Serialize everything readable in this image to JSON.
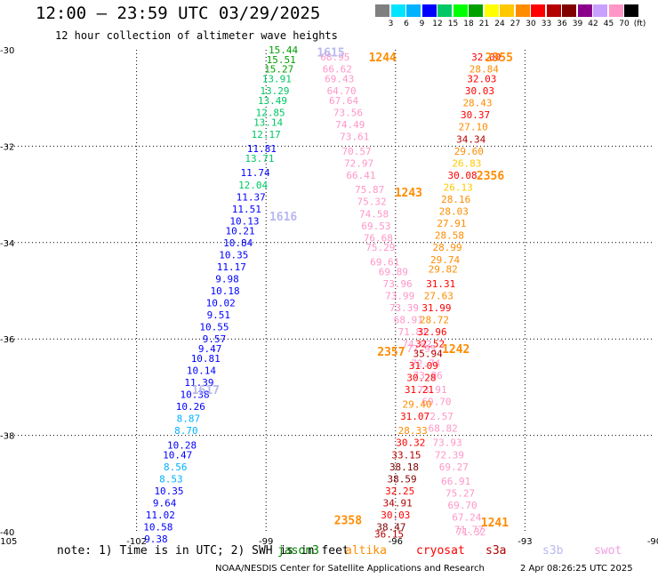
{
  "header": {
    "title": "12:00 – 23:59 UTC 03/29/2025",
    "subtitle": "12 hour collection of altimeter wave heights"
  },
  "color_scale": {
    "labels": [
      "3",
      "6",
      "9",
      "12",
      "15",
      "18",
      "21",
      "24",
      "27",
      "30",
      "33",
      "36",
      "39",
      "42",
      "45",
      "70",
      "(ft)"
    ],
    "colors": [
      "#808080",
      "#00e5ff",
      "#00b2ff",
      "#0000ff",
      "#00c864",
      "#00ff00",
      "#00a000",
      "#ffff00",
      "#ffc800",
      "#ff8c00",
      "#ff0000",
      "#b40000",
      "#800000",
      "#8b008b",
      "#c8a0ff",
      "#ff96c8",
      "#000000"
    ]
  },
  "note": {
    "text": "note: 1) Time is in UTC; 2) SWH is in feet",
    "satellites": [
      {
        "name": "jason3",
        "color": "#008000"
      },
      {
        "name": "altika",
        "color": "#ff8c00"
      },
      {
        "name": "cryosat",
        "color": "#ff0000"
      },
      {
        "name": "s3a",
        "color": "#b00000"
      },
      {
        "name": "s3b",
        "color": "#b8b8f0"
      },
      {
        "name": "swot",
        "color": "#f0a0e0"
      }
    ]
  },
  "footer": {
    "credit": "NOAA/NESDIS Center for Satellite Applications and Research",
    "stamp": "2 Apr 08:26:25 UTC 2025"
  },
  "chart_data": {
    "type": "scatter",
    "title": "12:00 – 23:59 UTC 03/29/2025",
    "subtitle": "12 hour collection of altimeter wave heights",
    "xlim": [
      -105,
      -90
    ],
    "ylim": [
      -40,
      -30
    ],
    "x_ticks": [
      "-105",
      "-102",
      "-99",
      "-96",
      "-93",
      "-90"
    ],
    "y_ticks": [
      "-30",
      "-32",
      "-34",
      "-36",
      "-38",
      "-40"
    ],
    "grid": true,
    "pass_labels": [
      {
        "text": "1615",
        "x": -97.5,
        "y": -30.05,
        "color": "#b8b8f0"
      },
      {
        "text": "1244",
        "x": -96.3,
        "y": -30.15,
        "color": "#ff8c00"
      },
      {
        "text": "2355",
        "x": -93.6,
        "y": -30.15,
        "color": "#ff8c00"
      },
      {
        "text": "2356",
        "x": -93.8,
        "y": -32.6,
        "color": "#ff8c00"
      },
      {
        "text": "1243",
        "x": -95.7,
        "y": -32.95,
        "color": "#ff8c00"
      },
      {
        "text": "1616",
        "x": -98.6,
        "y": -33.45,
        "color": "#b8b8f0"
      },
      {
        "text": "2357",
        "x": -96.1,
        "y": -36.25,
        "color": "#ff8c00"
      },
      {
        "text": "1242",
        "x": -94.6,
        "y": -36.2,
        "color": "#ff8c00"
      },
      {
        "text": "1617",
        "x": -100.4,
        "y": -37.05,
        "color": "#b8b8f0"
      },
      {
        "text": "2358",
        "x": -97.1,
        "y": -39.75,
        "color": "#ff8c00"
      },
      {
        "text": "1241",
        "x": -93.7,
        "y": -39.8,
        "color": "#ff8c00"
      }
    ],
    "series": [
      {
        "name": "jason3",
        "points": [
          {
            "x": -98.6,
            "y": -30.0,
            "v": "15.44",
            "c": "#00a000"
          },
          {
            "x": -98.65,
            "y": -30.2,
            "v": "15.51",
            "c": "#00a000"
          },
          {
            "x": -98.7,
            "y": -30.4,
            "v": "15.27",
            "c": "#00a000"
          },
          {
            "x": -98.75,
            "y": -30.6,
            "v": "13.91",
            "c": "#00c864"
          },
          {
            "x": -98.8,
            "y": -30.85,
            "v": "13.29",
            "c": "#00c864"
          },
          {
            "x": -98.85,
            "y": -31.05,
            "v": "13.49",
            "c": "#00c864"
          },
          {
            "x": -98.9,
            "y": -31.3,
            "v": "12.85",
            "c": "#00c864"
          },
          {
            "x": -98.95,
            "y": -31.5,
            "v": "13.14",
            "c": "#00c864"
          },
          {
            "x": -99.0,
            "y": -31.75,
            "v": "12.17",
            "c": "#00c864"
          },
          {
            "x": -99.1,
            "y": -32.05,
            "v": "11.81",
            "c": "#0000ff"
          },
          {
            "x": -99.15,
            "y": -32.25,
            "v": "13.71",
            "c": "#00c864"
          },
          {
            "x": -99.25,
            "y": -32.55,
            "v": "11.74",
            "c": "#0000ff"
          },
          {
            "x": -99.3,
            "y": -32.8,
            "v": "12.04",
            "c": "#00c864"
          },
          {
            "x": -99.35,
            "y": -33.05,
            "v": "11.37",
            "c": "#0000ff"
          },
          {
            "x": -99.45,
            "y": -33.3,
            "v": "11.51",
            "c": "#0000ff"
          },
          {
            "x": -99.5,
            "y": -33.55,
            "v": "10.13",
            "c": "#0000ff"
          },
          {
            "x": -99.6,
            "y": -33.75,
            "v": "10.21",
            "c": "#0000ff"
          },
          {
            "x": -99.65,
            "y": -34.0,
            "v": "10.84",
            "c": "#0000ff"
          },
          {
            "x": -99.75,
            "y": -34.25,
            "v": "10.35",
            "c": "#0000ff"
          },
          {
            "x": -99.8,
            "y": -34.5,
            "v": "11.17",
            "c": "#0000ff"
          },
          {
            "x": -99.9,
            "y": -34.75,
            "v": "9.98",
            "c": "#0000ff"
          },
          {
            "x": -99.95,
            "y": -35.0,
            "v": "10.18",
            "c": "#0000ff"
          },
          {
            "x": -100.05,
            "y": -35.25,
            "v": "10.02",
            "c": "#0000ff"
          },
          {
            "x": -100.1,
            "y": -35.5,
            "v": "9.51",
            "c": "#0000ff"
          },
          {
            "x": -100.2,
            "y": -35.75,
            "v": "10.55",
            "c": "#0000ff"
          },
          {
            "x": -100.2,
            "y": -36.0,
            "v": "9.57",
            "c": "#0000ff"
          },
          {
            "x": -100.3,
            "y": -36.2,
            "v": "9.47",
            "c": "#0000ff"
          },
          {
            "x": -100.4,
            "y": -36.4,
            "v": "10.81",
            "c": "#0000ff"
          },
          {
            "x": -100.5,
            "y": -36.65,
            "v": "10.14",
            "c": "#0000ff"
          },
          {
            "x": -100.55,
            "y": -36.9,
            "v": "11.39",
            "c": "#0000ff"
          },
          {
            "x": -100.65,
            "y": -37.15,
            "v": "10.38",
            "c": "#0000ff"
          },
          {
            "x": -100.75,
            "y": -37.4,
            "v": "10.26",
            "c": "#0000ff"
          },
          {
            "x": -100.8,
            "y": -37.65,
            "v": "8.87",
            "c": "#00b2ff"
          },
          {
            "x": -100.85,
            "y": -37.9,
            "v": "8.70",
            "c": "#00b2ff"
          },
          {
            "x": -100.95,
            "y": -38.2,
            "v": "10.28",
            "c": "#0000ff"
          },
          {
            "x": -101.05,
            "y": -38.4,
            "v": "10.47",
            "c": "#0000ff"
          },
          {
            "x": -101.1,
            "y": -38.65,
            "v": "8.56",
            "c": "#00b2ff"
          },
          {
            "x": -101.2,
            "y": -38.9,
            "v": "8.53",
            "c": "#00b2ff"
          },
          {
            "x": -101.25,
            "y": -39.15,
            "v": "10.35",
            "c": "#0000ff"
          },
          {
            "x": -101.35,
            "y": -39.4,
            "v": "9.64",
            "c": "#0000ff"
          },
          {
            "x": -101.45,
            "y": -39.65,
            "v": "11.02",
            "c": "#0000ff"
          },
          {
            "x": -101.5,
            "y": -39.9,
            "v": "10.58",
            "c": "#0000ff"
          },
          {
            "x": -101.55,
            "y": -40.15,
            "v": "9.38",
            "c": "#0000ff"
          }
        ]
      },
      {
        "name": "swot",
        "points": [
          {
            "x": -97.4,
            "y": -30.15,
            "v": "68.95",
            "c": "#ff96c8"
          },
          {
            "x": -97.35,
            "y": -30.4,
            "v": "66.62",
            "c": "#ff96c8"
          },
          {
            "x": -97.3,
            "y": -30.6,
            "v": "69.43",
            "c": "#ff96c8"
          },
          {
            "x": -97.25,
            "y": -30.85,
            "v": "64.70",
            "c": "#ff96c8"
          },
          {
            "x": -97.2,
            "y": -31.05,
            "v": "67.64",
            "c": "#ff96c8"
          },
          {
            "x": -97.1,
            "y": -31.3,
            "v": "73.56",
            "c": "#ff96c8"
          },
          {
            "x": -97.05,
            "y": -31.55,
            "v": "74.49",
            "c": "#ff96c8"
          },
          {
            "x": -96.95,
            "y": -31.8,
            "v": "73.61",
            "c": "#ff96c8"
          },
          {
            "x": -96.9,
            "y": -32.1,
            "v": "70.57",
            "c": "#ff96c8"
          },
          {
            "x": -96.85,
            "y": -32.35,
            "v": "72.97",
            "c": "#ff96c8"
          },
          {
            "x": -96.8,
            "y": -32.6,
            "v": "66.41",
            "c": "#ff96c8"
          },
          {
            "x": -96.6,
            "y": -32.9,
            "v": "75.87",
            "c": "#ff96c8"
          },
          {
            "x": -96.55,
            "y": -33.15,
            "v": "75.32",
            "c": "#ff96c8"
          },
          {
            "x": -96.5,
            "y": -33.4,
            "v": "74.58",
            "c": "#ff96c8"
          },
          {
            "x": -96.45,
            "y": -33.65,
            "v": "69.53",
            "c": "#ff96c8"
          },
          {
            "x": -96.4,
            "y": -33.9,
            "v": "76.68",
            "c": "#ff96c8"
          },
          {
            "x": -96.35,
            "y": -34.1,
            "v": "75.29",
            "c": "#ff96c8"
          },
          {
            "x": -96.25,
            "y": -34.4,
            "v": "69.61",
            "c": "#ff96c8"
          },
          {
            "x": -96.05,
            "y": -34.6,
            "v": "69.89",
            "c": "#ff96c8"
          },
          {
            "x": -95.95,
            "y": -34.85,
            "v": "73.96",
            "c": "#ff96c8"
          },
          {
            "x": -95.9,
            "y": -35.1,
            "v": "73.99",
            "c": "#ff96c8"
          },
          {
            "x": -95.8,
            "y": -35.35,
            "v": "73.39",
            "c": "#ff96c8"
          },
          {
            "x": -95.7,
            "y": -35.6,
            "v": "68.91",
            "c": "#ff96c8"
          },
          {
            "x": -95.6,
            "y": -35.85,
            "v": "71.81",
            "c": "#ff96c8"
          },
          {
            "x": -95.5,
            "y": -36.1,
            "v": "74.02",
            "c": "#ff96c8"
          },
          {
            "x": -95.4,
            "y": -36.2,
            "v": "77.95",
            "c": "#ff96c8"
          },
          {
            "x": -95.3,
            "y": -36.5,
            "v": "72.74",
            "c": "#ff96c8"
          },
          {
            "x": -95.25,
            "y": -36.75,
            "v": "73.86",
            "c": "#ff96c8"
          },
          {
            "x": -95.15,
            "y": -37.05,
            "v": "73.91",
            "c": "#ff96c8"
          },
          {
            "x": -95.05,
            "y": -37.3,
            "v": "69.70",
            "c": "#ff96c8"
          },
          {
            "x": -95.0,
            "y": -37.6,
            "v": "72.57",
            "c": "#ff96c8"
          },
          {
            "x": -94.9,
            "y": -37.85,
            "v": "68.82",
            "c": "#ff96c8"
          },
          {
            "x": -94.8,
            "y": -38.15,
            "v": "73.93",
            "c": "#ff96c8"
          },
          {
            "x": -94.75,
            "y": -38.4,
            "v": "72.39",
            "c": "#ff96c8"
          },
          {
            "x": -94.65,
            "y": -38.65,
            "v": "69.27",
            "c": "#ff96c8"
          },
          {
            "x": -94.6,
            "y": -38.95,
            "v": "66.91",
            "c": "#ff96c8"
          },
          {
            "x": -94.5,
            "y": -39.2,
            "v": "75.27",
            "c": "#ff96c8"
          },
          {
            "x": -94.45,
            "y": -39.45,
            "v": "69.70",
            "c": "#ff96c8"
          },
          {
            "x": -94.35,
            "y": -39.7,
            "v": "67.24",
            "c": "#ff96c8"
          },
          {
            "x": -94.3,
            "y": -39.95,
            "v": "71.77",
            "c": "#ff96c8"
          },
          {
            "x": -94.25,
            "y": -40.0,
            "v": "71.32",
            "c": "#ff96c8"
          }
        ]
      },
      {
        "name": "s3a",
        "points": [
          {
            "x": -93.9,
            "y": -30.15,
            "v": "32.00",
            "c": "#ff0000"
          },
          {
            "x": -93.95,
            "y": -30.4,
            "v": "28.84",
            "c": "#ff8c00"
          },
          {
            "x": -94.0,
            "y": -30.6,
            "v": "32.03",
            "c": "#ff0000"
          },
          {
            "x": -94.05,
            "y": -30.85,
            "v": "30.03",
            "c": "#ff0000"
          },
          {
            "x": -94.1,
            "y": -31.1,
            "v": "28.43",
            "c": "#ff8c00"
          },
          {
            "x": -94.15,
            "y": -31.35,
            "v": "30.37",
            "c": "#ff0000"
          },
          {
            "x": -94.2,
            "y": -31.6,
            "v": "27.10",
            "c": "#ff8c00"
          },
          {
            "x": -94.25,
            "y": -31.85,
            "v": "34.34",
            "c": "#b40000"
          },
          {
            "x": -94.3,
            "y": -32.1,
            "v": "29.60",
            "c": "#ff8c00"
          },
          {
            "x": -94.35,
            "y": -32.35,
            "v": "26.83",
            "c": "#ffc800"
          },
          {
            "x": -94.45,
            "y": -32.6,
            "v": "30.08",
            "c": "#ff0000"
          },
          {
            "x": -94.55,
            "y": -32.85,
            "v": "26.13",
            "c": "#ffc800"
          },
          {
            "x": -94.6,
            "y": -33.1,
            "v": "28.16",
            "c": "#ff8c00"
          },
          {
            "x": -94.65,
            "y": -33.35,
            "v": "28.03",
            "c": "#ff8c00"
          },
          {
            "x": -94.7,
            "y": -33.6,
            "v": "27.91",
            "c": "#ff8c00"
          },
          {
            "x": -94.75,
            "y": -33.85,
            "v": "28.58",
            "c": "#ff8c00"
          },
          {
            "x": -94.8,
            "y": -34.1,
            "v": "28.99",
            "c": "#ff8c00"
          },
          {
            "x": -94.85,
            "y": -34.35,
            "v": "29.74",
            "c": "#ff8c00"
          },
          {
            "x": -94.9,
            "y": -34.55,
            "v": "29.82",
            "c": "#ff8c00"
          },
          {
            "x": -94.95,
            "y": -34.85,
            "v": "31.31",
            "c": "#ff0000"
          },
          {
            "x": -95.0,
            "y": -35.1,
            "v": "27.63",
            "c": "#ff8c00"
          },
          {
            "x": -95.05,
            "y": -35.35,
            "v": "31.99",
            "c": "#ff0000"
          },
          {
            "x": -95.1,
            "y": -35.6,
            "v": "28.72",
            "c": "#ff8c00"
          },
          {
            "x": -95.15,
            "y": -35.85,
            "v": "32.96",
            "c": "#ff0000"
          },
          {
            "x": -95.2,
            "y": -36.1,
            "v": "32.52",
            "c": "#ff0000"
          },
          {
            "x": -95.25,
            "y": -36.3,
            "v": "35.94",
            "c": "#b40000"
          },
          {
            "x": -95.35,
            "y": -36.55,
            "v": "31.09",
            "c": "#ff0000"
          },
          {
            "x": -95.4,
            "y": -36.8,
            "v": "30.28",
            "c": "#ff0000"
          },
          {
            "x": -95.45,
            "y": -37.05,
            "v": "31.21",
            "c": "#ff0000"
          },
          {
            "x": -95.5,
            "y": -37.35,
            "v": "29.40",
            "c": "#ff8c00"
          },
          {
            "x": -95.55,
            "y": -37.6,
            "v": "31.07",
            "c": "#ff0000"
          },
          {
            "x": -95.6,
            "y": -37.9,
            "v": "28.33",
            "c": "#ff8c00"
          },
          {
            "x": -95.65,
            "y": -38.15,
            "v": "30.32",
            "c": "#ff0000"
          },
          {
            "x": -95.75,
            "y": -38.4,
            "v": "33.15",
            "c": "#b40000"
          },
          {
            "x": -95.8,
            "y": -38.65,
            "v": "38.18",
            "c": "#800000"
          },
          {
            "x": -95.85,
            "y": -38.9,
            "v": "38.59",
            "c": "#800000"
          },
          {
            "x": -95.9,
            "y": -39.15,
            "v": "32.25",
            "c": "#ff0000"
          },
          {
            "x": -95.95,
            "y": -39.4,
            "v": "34.91",
            "c": "#b40000"
          },
          {
            "x": -96.0,
            "y": -39.65,
            "v": "30.03",
            "c": "#ff0000"
          },
          {
            "x": -96.1,
            "y": -39.9,
            "v": "38.47",
            "c": "#800000"
          },
          {
            "x": -96.15,
            "y": -40.05,
            "v": "36.15",
            "c": "#b40000"
          }
        ]
      }
    ]
  }
}
